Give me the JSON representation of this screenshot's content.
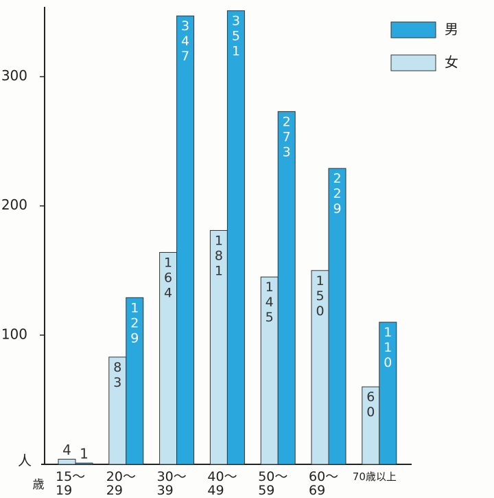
{
  "chart_data": {
    "type": "bar",
    "categories": [
      "15〜\n19",
      "20〜\n29",
      "30〜\n39",
      "40〜\n49",
      "50〜\n59",
      "60〜\n69",
      "70歳以上"
    ],
    "series": [
      {
        "name": "女",
        "color": "#c4e3f0",
        "values": [
          4,
          83,
          164,
          181,
          145,
          150,
          60
        ]
      },
      {
        "name": "男",
        "color": "#2aa8dd",
        "values": [
          1,
          129,
          347,
          351,
          273,
          229,
          110
        ]
      }
    ],
    "ylabel": "人",
    "xlabel": "歳",
    "ylim": [
      0,
      354
    ],
    "yticks": [
      100,
      200,
      300
    ],
    "legend": "upper right",
    "data_labels": true
  }
}
